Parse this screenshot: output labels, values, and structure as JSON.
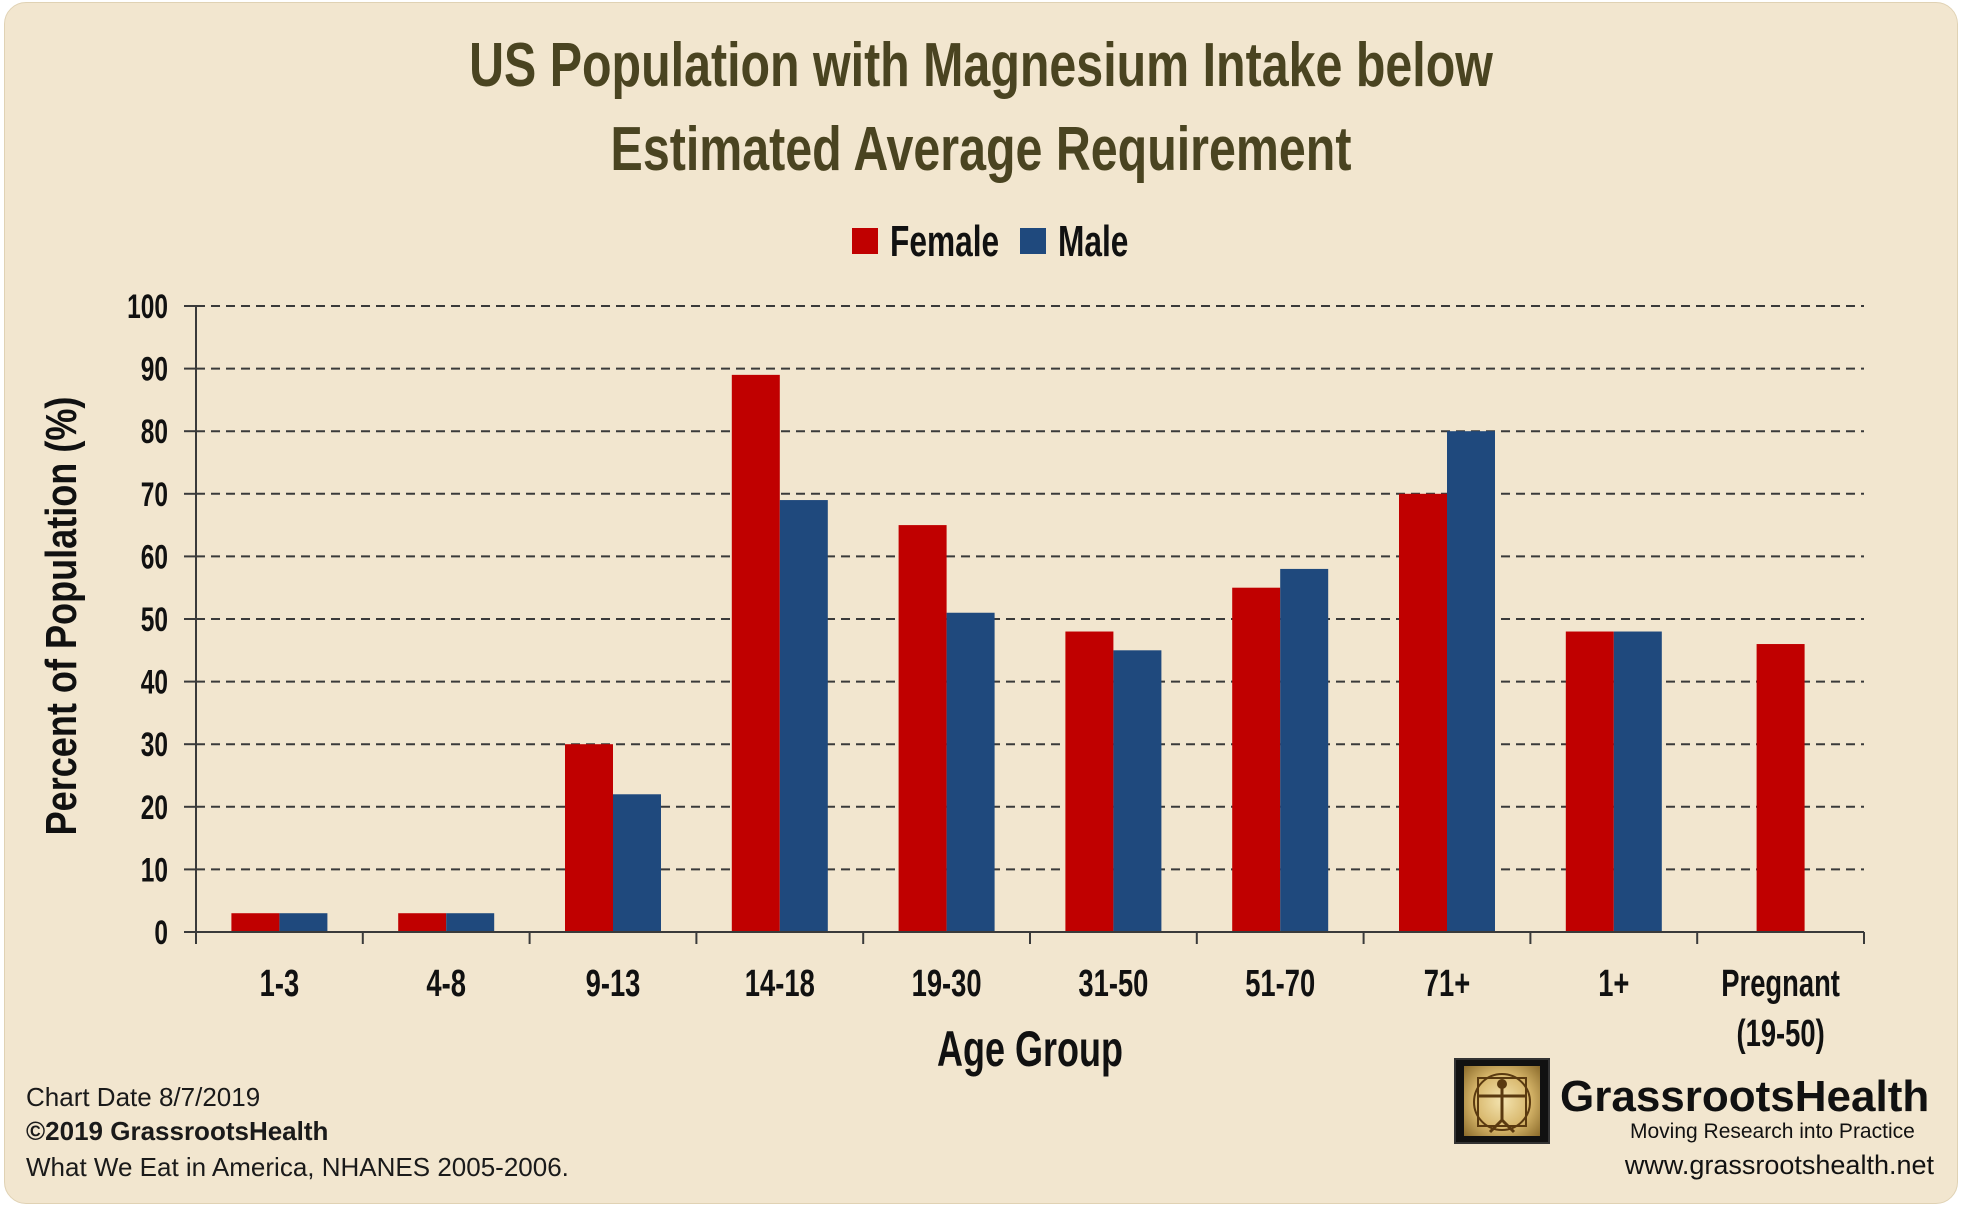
{
  "chart_data": {
    "type": "bar",
    "title": [
      "US Population with Magnesium Intake below",
      "Estimated Average Requirement"
    ],
    "xlabel": "Age Group",
    "ylabel": "Percent of Population (%)",
    "ylim": [
      0,
      100
    ],
    "yticks": [
      "0",
      "10",
      "20",
      "30",
      "40",
      "50",
      "60",
      "70",
      "80",
      "90",
      "100"
    ],
    "grid": true,
    "legend_position": "top-center",
    "categories": [
      "1-3",
      "4-8",
      "9-13",
      "14-18",
      "19-30",
      "31-50",
      "51-70",
      "71+",
      "1+",
      "Pregnant (19-50)"
    ],
    "category_lines": [
      [
        "1-3"
      ],
      [
        "4-8"
      ],
      [
        "9-13"
      ],
      [
        "14-18"
      ],
      [
        "19-30"
      ],
      [
        "31-50"
      ],
      [
        "51-70"
      ],
      [
        "71+"
      ],
      [
        "1+"
      ],
      [
        "Pregnant",
        "(19-50)"
      ]
    ],
    "series": [
      {
        "name": "Female",
        "color": "#c00000",
        "values": [
          3,
          3,
          30,
          89,
          65,
          48,
          55,
          70,
          48,
          46
        ]
      },
      {
        "name": "Male",
        "color": "#1f497d",
        "values": [
          3,
          3,
          22,
          69,
          51,
          45,
          58,
          80,
          48,
          null
        ]
      }
    ]
  },
  "footer": {
    "chart_date": "Chart Date 8/7/2019",
    "copyright": "©2019 GrassrootsHealth",
    "source": "What We Eat in America, NHANES 2005-2006."
  },
  "brand": {
    "name": "GrassrootsHealth",
    "tagline": "Moving Research into Practice",
    "website": "www.grassrootshealth.net"
  }
}
